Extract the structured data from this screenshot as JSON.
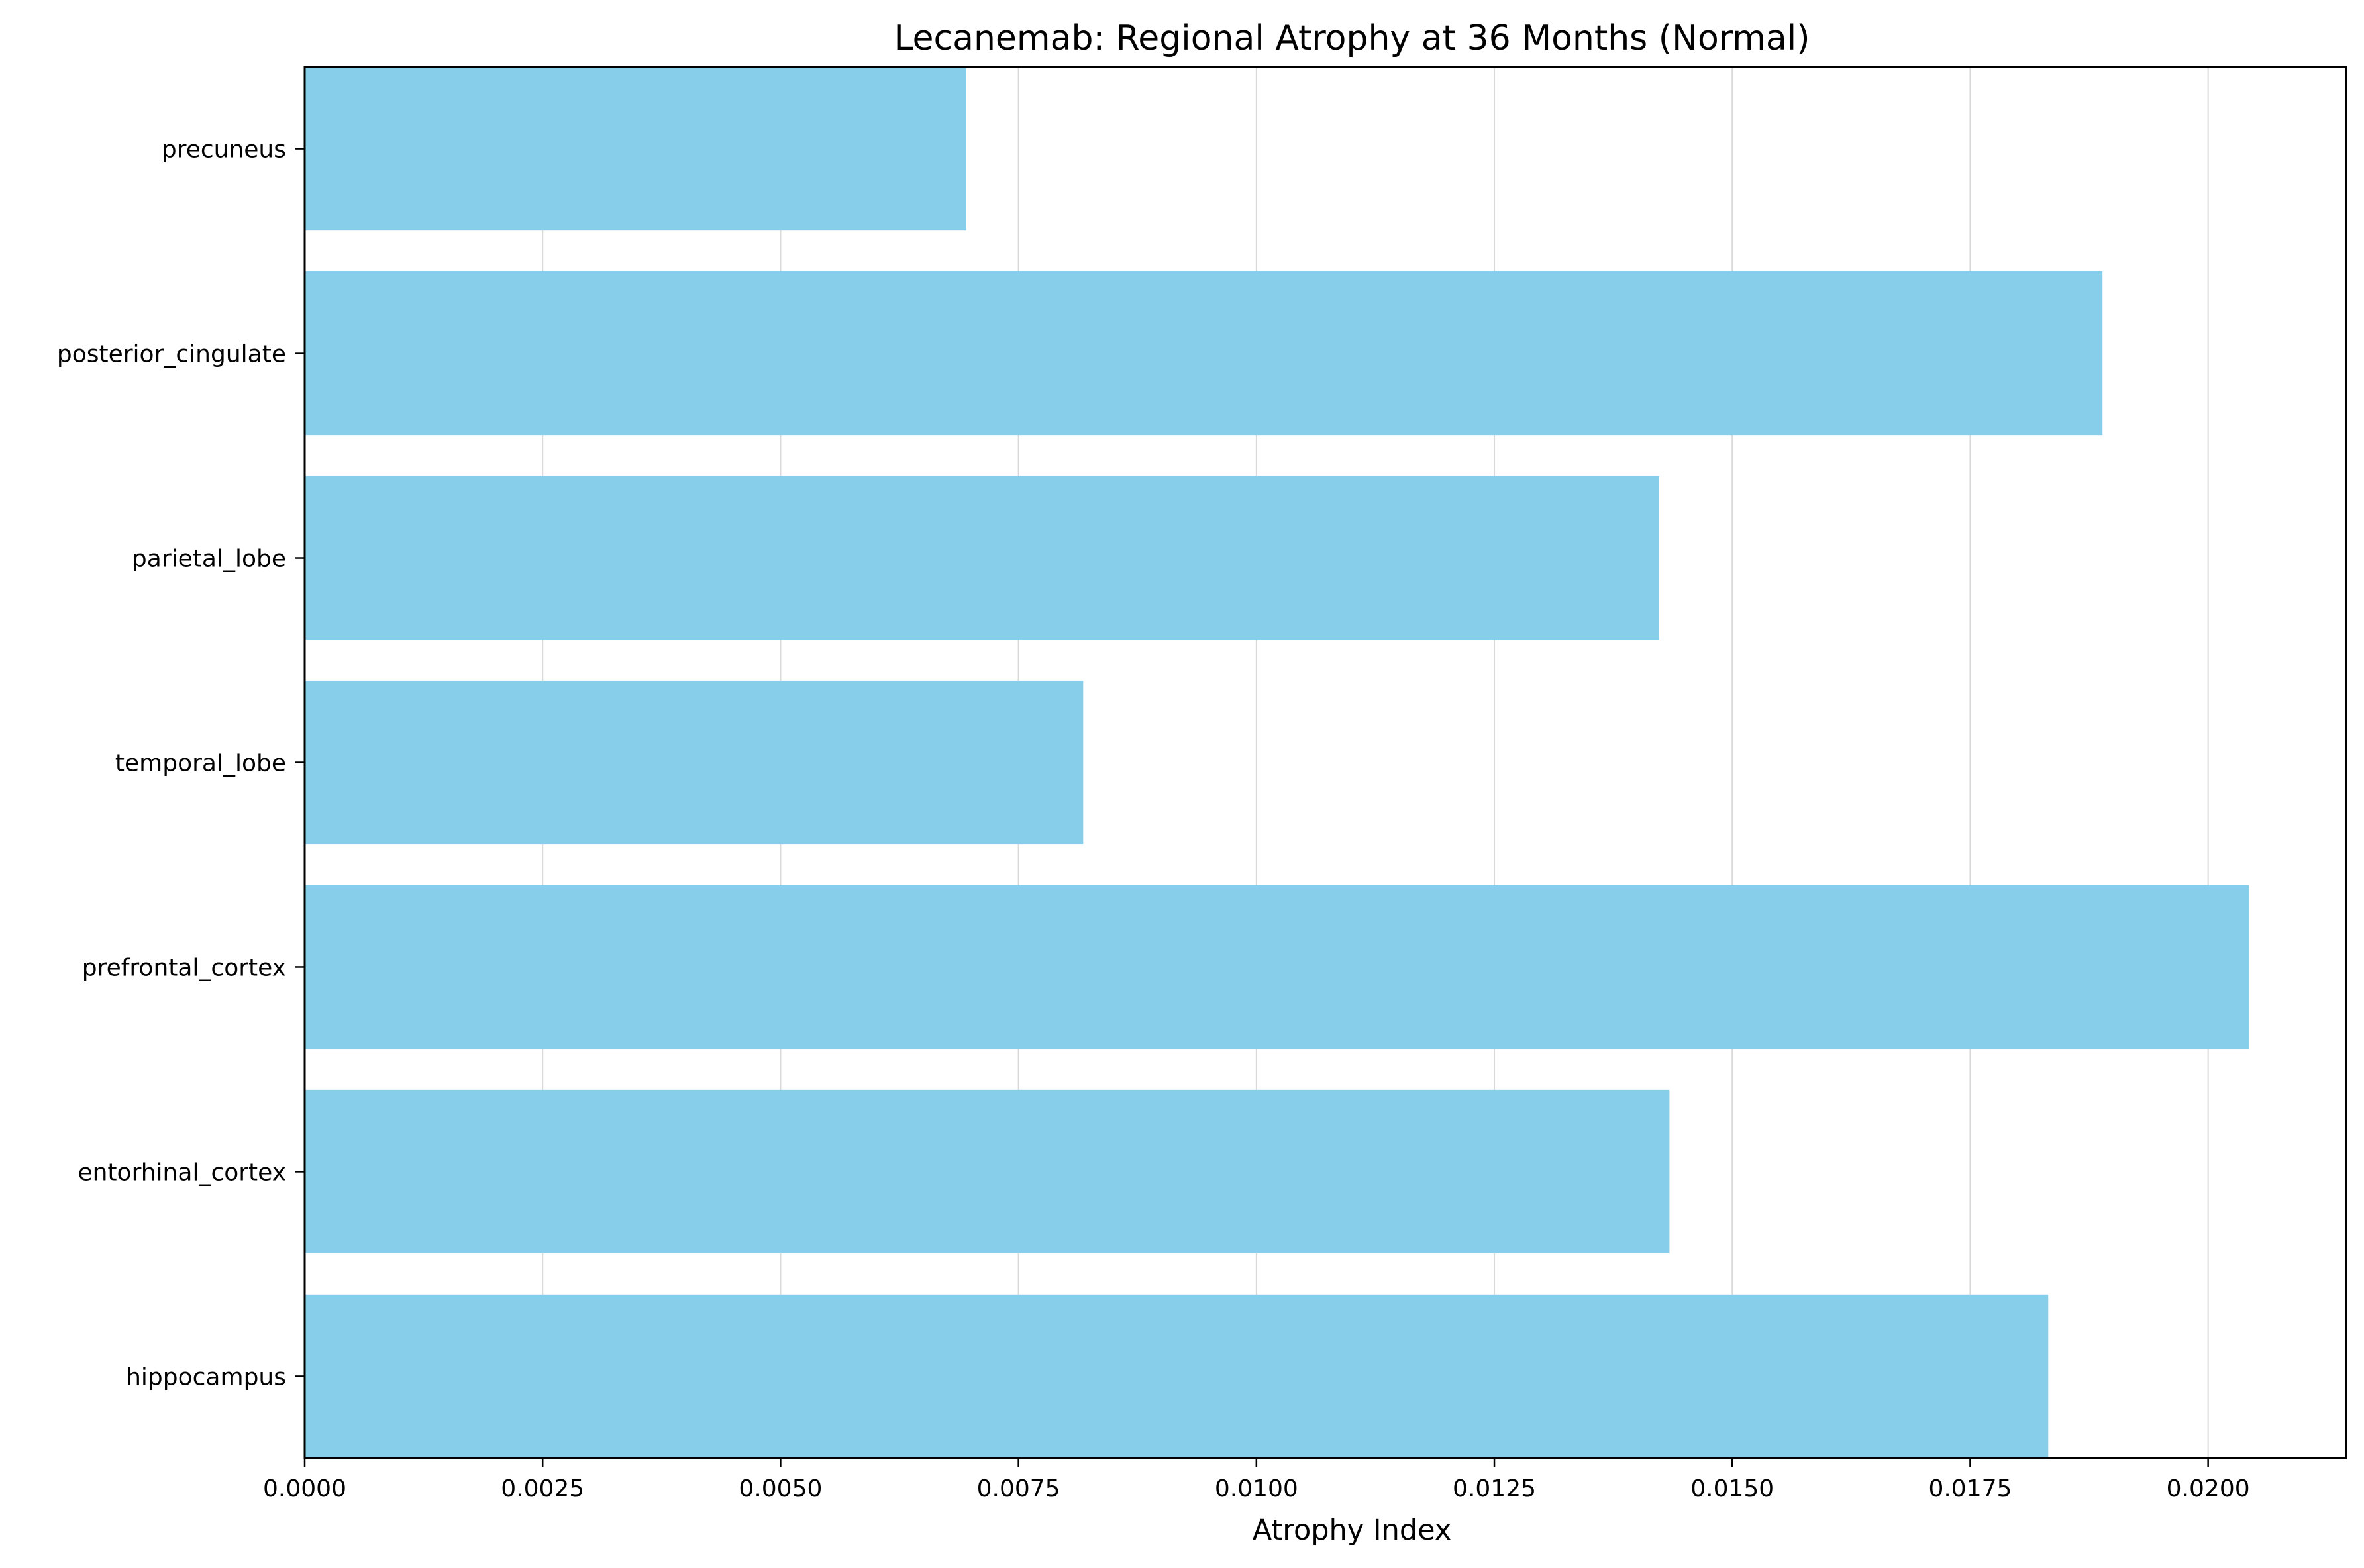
{
  "chart_data": {
    "type": "bar",
    "orientation": "horizontal",
    "title": "Lecanemab: Regional Atrophy at 36 Months (Normal)",
    "xlabel": "Atrophy Index",
    "ylabel": "",
    "categories": [
      "hippocampus",
      "entorhinal_cortex",
      "prefrontal_cortex",
      "temporal_lobe",
      "parietal_lobe",
      "posterior_cingulate",
      "precuneus"
    ],
    "values": [
      0.01832,
      0.01434,
      0.02043,
      0.00818,
      0.01423,
      0.01889,
      0.00695
    ],
    "xlim": [
      0,
      0.02145
    ],
    "xticks": [
      "0.0000",
      "0.0025",
      "0.0050",
      "0.0075",
      "0.0100",
      "0.0125",
      "0.0150",
      "0.0175",
      "0.0200"
    ],
    "xtick_values": [
      0,
      0.0025,
      0.005,
      0.0075,
      0.01,
      0.0125,
      0.015,
      0.0175,
      0.02
    ],
    "bar_color": "#87ceeb",
    "grid": "x-axis vertical lines",
    "legend": "none"
  }
}
